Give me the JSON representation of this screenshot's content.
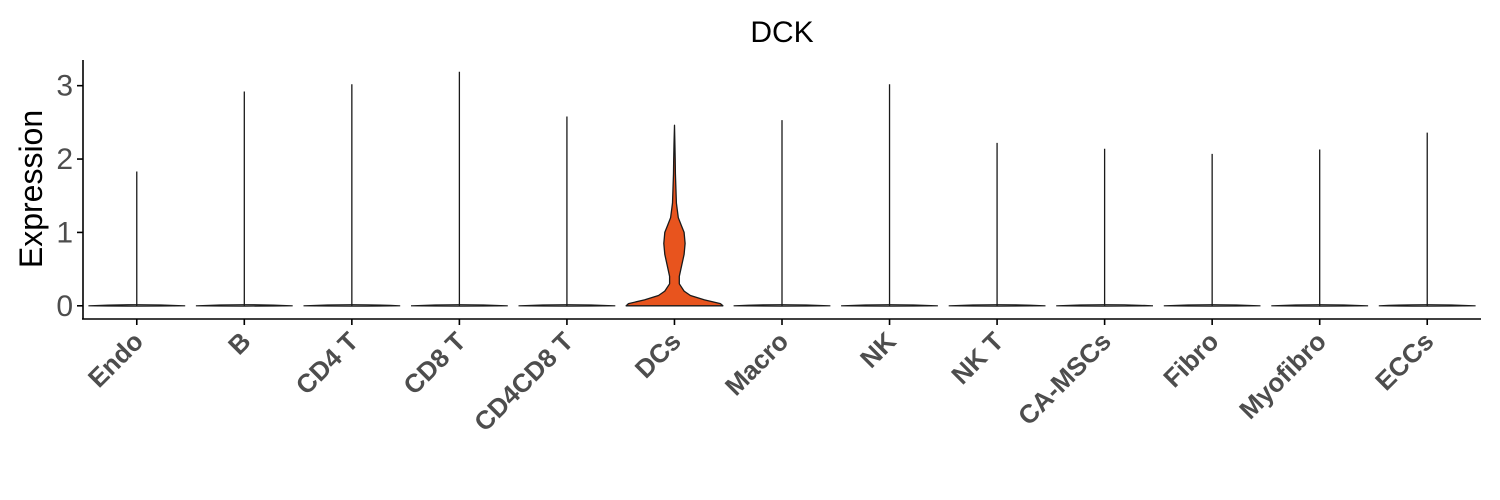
{
  "chart_data": {
    "type": "violin",
    "title": "DCK",
    "xlabel": "",
    "ylabel": "Expression",
    "ylim": [
      -0.18,
      3.35
    ],
    "yticks": [
      0,
      1,
      2,
      3
    ],
    "grid": false,
    "legend": "none",
    "categories": [
      "Endo",
      "B",
      "CD4 T",
      "CD8 T",
      "CD4CD8 T",
      "DCs",
      "Macro",
      "NK",
      "NK T",
      "CA-MSCs",
      "Fibro",
      "Myofibro",
      "ECCs"
    ],
    "max_values": [
      1.83,
      2.92,
      3.02,
      3.19,
      2.58,
      2.46,
      2.53,
      3.02,
      2.22,
      2.14,
      2.07,
      2.13,
      2.36
    ],
    "highlight": "DCs",
    "highlight_density_profile": [
      [
        0.0,
        1.0
      ],
      [
        0.03,
        0.95
      ],
      [
        0.08,
        0.62
      ],
      [
        0.14,
        0.33
      ],
      [
        0.2,
        0.2
      ],
      [
        0.3,
        0.1
      ],
      [
        0.4,
        0.1
      ],
      [
        0.55,
        0.15
      ],
      [
        0.7,
        0.2
      ],
      [
        0.85,
        0.22
      ],
      [
        1.0,
        0.2
      ],
      [
        1.1,
        0.14
      ],
      [
        1.2,
        0.08
      ],
      [
        1.4,
        0.04
      ],
      [
        1.6,
        0.03
      ],
      [
        1.8,
        0.02
      ],
      [
        2.0,
        0.015
      ],
      [
        2.2,
        0.01
      ],
      [
        2.46,
        0.0
      ]
    ],
    "colors": {
      "highlight_fill": "#E8541E",
      "outline": "#1a1a1a",
      "axis": "#000000",
      "tick_text": "#4d4d4d"
    }
  }
}
